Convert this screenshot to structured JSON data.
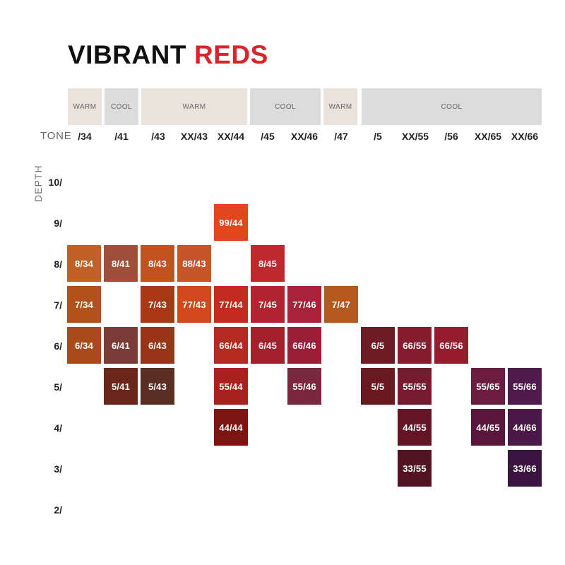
{
  "title": {
    "part1": "VIBRANT",
    "part2": "REDS"
  },
  "tone_label": "TONE",
  "depth_label": "DEPTH",
  "temperature_bands": [
    {
      "label": "WARM",
      "color": "#e9e3dc"
    },
    {
      "label": "COOL",
      "color": "#dcdcdc"
    },
    {
      "label": "WARM",
      "color": "#e9e3dc"
    },
    {
      "label": "COOL",
      "color": "#dcdcdc"
    },
    {
      "label": "WARM",
      "color": "#e9e3dc"
    },
    {
      "label": "COOL",
      "color": "#dcdcdc"
    }
  ],
  "tones": [
    "/34",
    "/41",
    "/43",
    "XX/43",
    "XX/44",
    "/45",
    "XX/46",
    "/47",
    "/5",
    "XX/55",
    "/56",
    "XX/65",
    "XX/66"
  ],
  "depths": [
    "10/",
    "9/",
    "8/",
    "7/",
    "6/",
    "5/",
    "4/",
    "3/",
    "2/"
  ],
  "swatches": [
    {
      "label": "99/44",
      "color": "#e0471c"
    },
    {
      "label": "8/34",
      "color": "#c06226"
    },
    {
      "label": "8/41",
      "color": "#a0503a"
    },
    {
      "label": "8/43",
      "color": "#c2521f"
    },
    {
      "label": "88/43",
      "color": "#c5552a"
    },
    {
      "label": "8/45",
      "color": "#bc2a2d"
    },
    {
      "label": "7/34",
      "color": "#b05219"
    },
    {
      "label": "7/43",
      "color": "#a93816"
    },
    {
      "label": "77/43",
      "color": "#d2481e"
    },
    {
      "label": "77/44",
      "color": "#c32b1f"
    },
    {
      "label": "7/45",
      "color": "#b22530"
    },
    {
      "label": "77/46",
      "color": "#a8233a"
    },
    {
      "label": "7/47",
      "color": "#b45a1e"
    },
    {
      "label": "6/34",
      "color": "#a84a19"
    },
    {
      "label": "6/41",
      "color": "#7a3a36"
    },
    {
      "label": "6/43",
      "color": "#9a3517"
    },
    {
      "label": "66/44",
      "color": "#b52a20"
    },
    {
      "label": "6/45",
      "color": "#a21f2b"
    },
    {
      "label": "66/46",
      "color": "#9a1f36"
    },
    {
      "label": "6/5",
      "color": "#6e1b24"
    },
    {
      "label": "66/55",
      "color": "#861d2e"
    },
    {
      "label": "66/56",
      "color": "#961c2e"
    },
    {
      "label": "5/41",
      "color": "#6a2618"
    },
    {
      "label": "5/43",
      "color": "#5a2e22"
    },
    {
      "label": "55/44",
      "color": "#a7221e"
    },
    {
      "label": "55/46",
      "color": "#7d2640"
    },
    {
      "label": "5/5",
      "color": "#6c1820"
    },
    {
      "label": "55/55",
      "color": "#761a2e"
    },
    {
      "label": "55/65",
      "color": "#6c1d3e"
    },
    {
      "label": "55/66",
      "color": "#4e1b4c"
    },
    {
      "label": "44/44",
      "color": "#7a1611"
    },
    {
      "label": "44/55",
      "color": "#631526"
    },
    {
      "label": "44/65",
      "color": "#5a163a"
    },
    {
      "label": "44/66",
      "color": "#4a1846"
    },
    {
      "label": "33/55",
      "color": "#521423"
    },
    {
      "label": "33/66",
      "color": "#3b153f"
    }
  ]
}
